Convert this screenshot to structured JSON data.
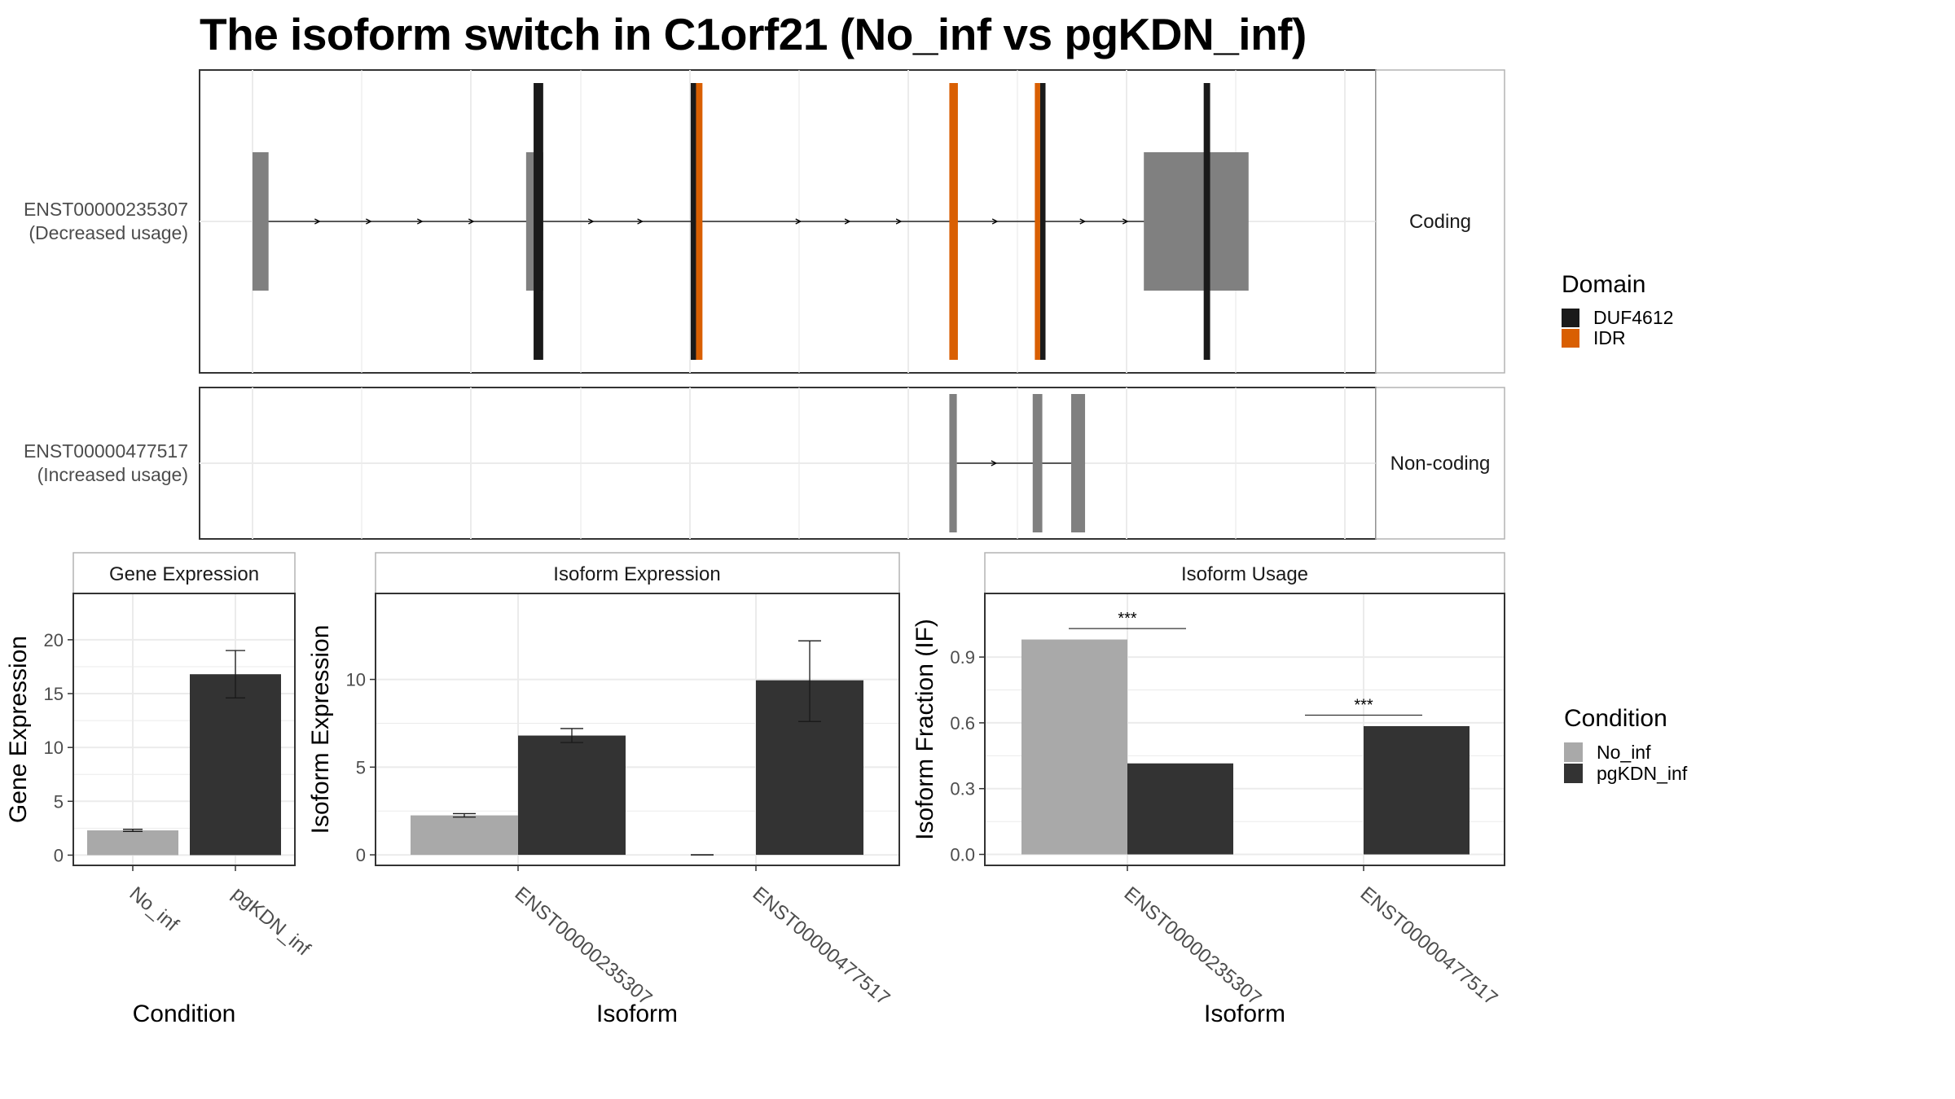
{
  "title": "The isoform switch in C1orf21 (No_inf vs pgKDN_inf)",
  "colors": {
    "grid": "#ebebeb",
    "exon": "#808080",
    "duf4612": "#1a1a1a",
    "idr": "#d95f02",
    "no_inf": "#a9a9a9",
    "pgkdn_inf": "#333333"
  },
  "chart_data": [
    {
      "type": "gene-structure",
      "rows": [
        {
          "isoform_id": "ENST00000235307",
          "usage_label": "(Decreased usage)",
          "strip": "Coding",
          "exons": [
            {
              "start": 0.0,
              "end": 1.5
            },
            {
              "start": 25.6,
              "end": 27.2
            },
            {
              "start": 83.4,
              "end": 93.2
            }
          ],
          "domain_segments": [
            {
              "domain": "DUF4612",
              "start": 26.3,
              "end": 27.2
            },
            {
              "domain": "DUF4612",
              "start": 41.0,
              "end": 41.5
            },
            {
              "domain": "IDR",
              "start": 41.5,
              "end": 42.1
            },
            {
              "domain": "IDR",
              "start": 65.2,
              "end": 66.0
            },
            {
              "domain": "IDR",
              "start": 73.2,
              "end": 73.7
            },
            {
              "domain": "DUF4612",
              "start": 73.7,
              "end": 74.2
            },
            {
              "domain": "DUF4612",
              "start": 89.0,
              "end": 89.6
            }
          ],
          "intron_arrows": [
            6.2,
            11.0,
            15.8,
            20.6,
            31.8,
            36.4,
            51.2,
            55.8,
            60.6,
            69.6,
            77.8,
            81.8,
            86.8
          ]
        },
        {
          "isoform_id": "ENST00000477517",
          "usage_label": "(Increased usage)",
          "strip": "Non-coding",
          "exons": [
            {
              "start": 65.2,
              "end": 65.9
            },
            {
              "start": 73.0,
              "end": 73.9
            },
            {
              "start": 76.6,
              "end": 77.9
            }
          ],
          "domain_segments": [],
          "intron_arrows": [
            69.5
          ]
        }
      ],
      "legend": {
        "title": "Domain",
        "entries": [
          "DUF4612",
          "IDR"
        ]
      }
    },
    {
      "type": "bar",
      "strip": "Gene Expression",
      "xlabel": "Condition",
      "ylabel": "Gene Expression",
      "categories": [
        "No_inf",
        "pgKDN_inf"
      ],
      "values": [
        2.3,
        16.8
      ],
      "errors": [
        [
          2.2,
          2.4
        ],
        [
          14.6,
          19.0
        ]
      ],
      "yticks": [
        0,
        5,
        10,
        15,
        20
      ],
      "ylim": [
        -0.95,
        24.3
      ]
    },
    {
      "type": "bar",
      "strip": "Isoform Expression",
      "xlabel": "Isoform",
      "ylabel": "Isoform Expression",
      "categories": [
        "ENST00000235307",
        "ENST00000477517"
      ],
      "series": [
        {
          "name": "No_inf",
          "values": [
            2.25,
            0.0
          ],
          "errors": [
            [
              2.15,
              2.35
            ],
            [
              0.0,
              0.0
            ]
          ]
        },
        {
          "name": "pgKDN_inf",
          "values": [
            6.8,
            9.95
          ],
          "errors": [
            [
              6.4,
              7.2
            ],
            [
              7.6,
              12.2
            ]
          ]
        }
      ],
      "yticks": [
        0,
        5,
        10
      ],
      "ylim": [
        -0.6,
        14.9
      ]
    },
    {
      "type": "bar",
      "strip": "Isoform Usage",
      "xlabel": "Isoform",
      "ylabel": "Isoform Fraction (IF)",
      "categories": [
        "ENST00000235307",
        "ENST00000477517"
      ],
      "series": [
        {
          "name": "No_inf",
          "values": [
            0.98,
            0.0
          ]
        },
        {
          "name": "pgKDN_inf",
          "values": [
            0.415,
            0.585
          ]
        }
      ],
      "significance": [
        "***",
        "***"
      ],
      "yticks": [
        "0.0",
        "0.3",
        "0.6",
        "0.9"
      ],
      "ylim": [
        -0.05,
        1.19
      ],
      "legend": {
        "title": "Condition",
        "entries": [
          "No_inf",
          "pgKDN_inf"
        ]
      }
    }
  ]
}
